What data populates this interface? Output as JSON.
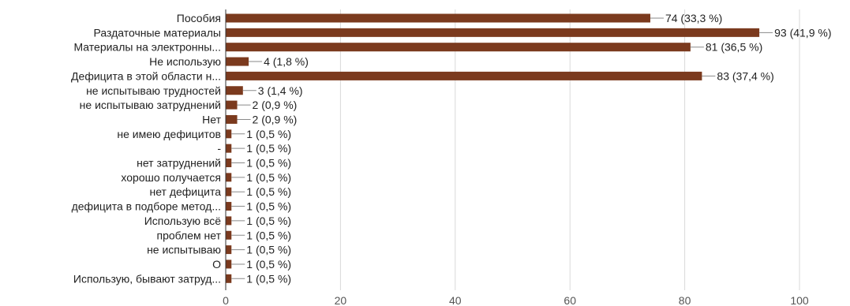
{
  "chart_data": {
    "type": "bar",
    "orientation": "horizontal",
    "title": "",
    "xlabel": "",
    "ylabel": "",
    "xlim": [
      0,
      100
    ],
    "x_ticks": [
      0,
      20,
      40,
      60,
      80,
      100
    ],
    "grid": true,
    "bar_color": "#7b3a1e",
    "categories": [
      "Пособия",
      "Раздаточные материалы",
      "Материалы на электронны...",
      "Не использую",
      "Дефицита в этой области н...",
      "не испытываю трудностей",
      "не испытываю затруднений",
      "Нет",
      "не имею дефицитов",
      "-",
      "нет затруднений",
      "хорошо получается",
      "нет дефицита",
      "дефицита в подборе метод...",
      "Использую всё",
      "проблем нет",
      "не испытываю",
      "О",
      "Использую, бывают затруд..."
    ],
    "values": [
      74,
      93,
      81,
      4,
      83,
      3,
      2,
      2,
      1,
      1,
      1,
      1,
      1,
      1,
      1,
      1,
      1,
      1,
      1
    ],
    "value_labels": [
      "74 (33,3 %)",
      "93 (41,9 %)",
      "81 (36,5 %)",
      "4 (1,8 %)",
      "83 (37,4 %)",
      "3 (1,4 %)",
      "2 (0,9 %)",
      "2 (0,9 %)",
      "1 (0,5 %)",
      "1 (0,5 %)",
      "1 (0,5 %)",
      "1 (0,5 %)",
      "1 (0,5 %)",
      "1 (0,5 %)",
      "1 (0,5 %)",
      "1 (0,5 %)",
      "1 (0,5 %)",
      "1 (0,5 %)",
      "1 (0,5 %)"
    ]
  }
}
